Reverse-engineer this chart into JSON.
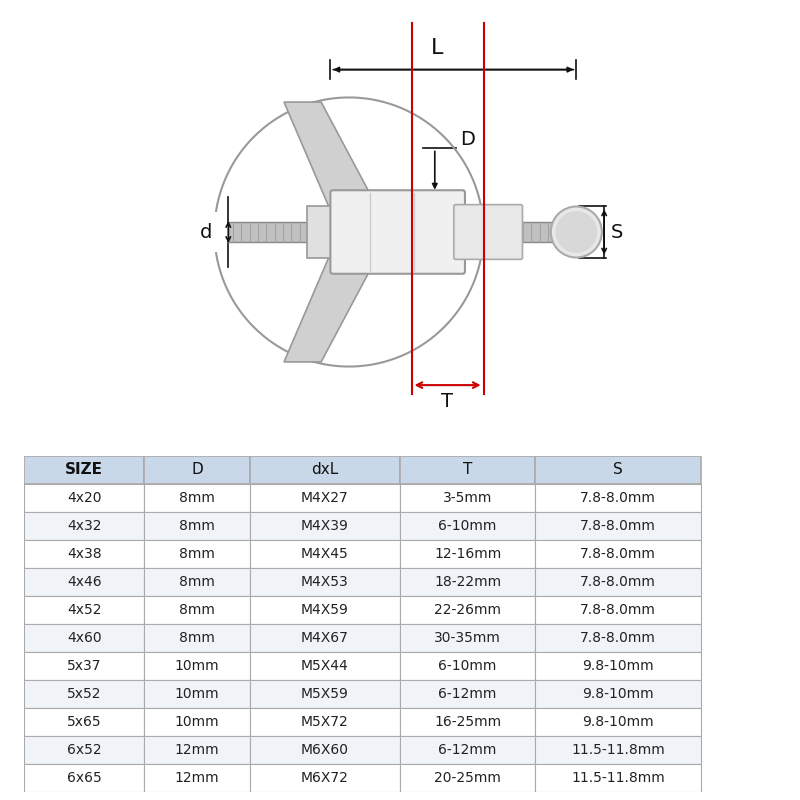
{
  "table_headers": [
    "SIZE",
    "D",
    "dxL",
    "T",
    "S"
  ],
  "table_rows": [
    [
      "4x20",
      "8mm",
      "M4X27",
      "3-5mm",
      "7.8-8.0mm"
    ],
    [
      "4x32",
      "8mm",
      "M4X39",
      "6-10mm",
      "7.8-8.0mm"
    ],
    [
      "4x38",
      "8mm",
      "M4X45",
      "12-16mm",
      "7.8-8.0mm"
    ],
    [
      "4x46",
      "8mm",
      "M4X53",
      "18-22mm",
      "7.8-8.0mm"
    ],
    [
      "4x52",
      "8mm",
      "M4X59",
      "22-26mm",
      "7.8-8.0mm"
    ],
    [
      "4x60",
      "8mm",
      "M4X67",
      "30-35mm",
      "7.8-8.0mm"
    ],
    [
      "5x37",
      "10mm",
      "M5X44",
      "6-10mm",
      "9.8-10mm"
    ],
    [
      "5x52",
      "10mm",
      "M5X59",
      "6-12mm",
      "9.8-10mm"
    ],
    [
      "5x65",
      "10mm",
      "M5X72",
      "16-25mm",
      "9.8-10mm"
    ],
    [
      "6x52",
      "12mm",
      "M6X60",
      "6-12mm",
      "11.5-11.8mm"
    ],
    [
      "6x65",
      "12mm",
      "M6X72",
      "20-25mm",
      "11.5-11.8mm"
    ]
  ],
  "header_bg": "#c8d8e8",
  "row_bg_odd": "#ffffff",
  "row_bg_even": "#f0f4f8",
  "border_color": "#aaaaaa",
  "text_color": "#222222",
  "header_text_color": "#111111",
  "diagram_bg": "#ffffff",
  "red_line_color": "#cc0000",
  "black_line_color": "#111111",
  "label_L": "L",
  "label_D": "D",
  "label_d": "d",
  "label_T": "T",
  "label_S": "S",
  "fig_bg": "#ffffff"
}
